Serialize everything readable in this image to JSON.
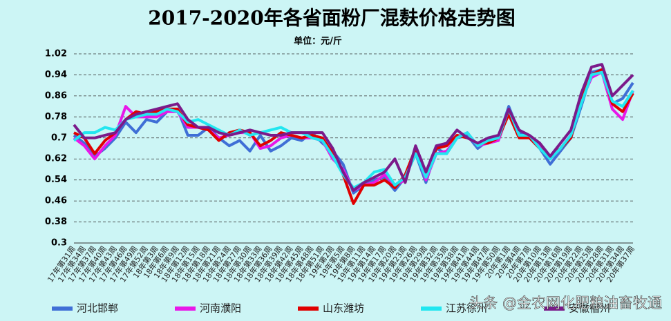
{
  "chart_data": {
    "type": "line",
    "title": "2017-2020年各省面粉厂混麸价格走势图",
    "subtitle": "单位：元/斤",
    "watermark": "头条 @金农网化肥粮油畜牧通",
    "categories": [
      "17年第31周",
      "17年第34周",
      "17年第37周",
      "17年第40周",
      "17年第43周",
      "17年第46周",
      "17年第49周",
      "17年第52周",
      "18年第3周",
      "18年第6周",
      "18年第9周",
      "18年第12周",
      "18年第15周",
      "18年第18周",
      "18年第21周",
      "18年第24周",
      "18年第27周",
      "18年第30周",
      "18年第33周",
      "18年第36周",
      "18年第39周",
      "18年第42周",
      "18年第45周",
      "18年第48周",
      "18年第51周",
      "19年第2周",
      "19年第5周",
      "19年第8周",
      "19年第11周",
      "19年第14周",
      "19年第17周",
      "19年第20周",
      "19年第23周",
      "19年第26周",
      "19年第29周",
      "19年第32周",
      "19年第35周",
      "19年第38周",
      "19年第41周",
      "19年第44周",
      "19年第47周",
      "19年第50周",
      "20年第1周",
      "20年第4周",
      "20年第7周",
      "20年第10周",
      "20年第13周",
      "20年第16周",
      "20年第19周",
      "20年第22周",
      "20年第25周",
      "20年第28周",
      "20年第31周",
      "20年第34周",
      "20年第37周"
    ],
    "series": [
      {
        "name": "河北邯郸",
        "color": "#3f6fd6",
        "values": [
          0.71,
          0.68,
          0.63,
          0.66,
          0.7,
          0.76,
          0.72,
          0.77,
          0.76,
          0.8,
          0.81,
          0.71,
          0.71,
          0.74,
          0.7,
          0.67,
          0.69,
          0.65,
          0.71,
          0.65,
          0.67,
          0.7,
          0.69,
          0.72,
          0.68,
          0.65,
          0.6,
          0.49,
          0.52,
          0.54,
          0.55,
          0.5,
          0.55,
          0.64,
          0.53,
          0.66,
          0.64,
          0.7,
          0.71,
          0.66,
          0.69,
          0.7,
          0.82,
          0.72,
          0.7,
          0.66,
          0.6,
          0.65,
          0.7,
          0.82,
          0.95,
          0.96,
          0.83,
          0.85,
          0.91
        ]
      },
      {
        "name": "河南濮阳",
        "color": "#e818e8",
        "values": [
          0.7,
          0.67,
          0.62,
          0.67,
          0.71,
          0.82,
          0.78,
          0.78,
          0.78,
          0.8,
          0.8,
          0.74,
          0.74,
          0.73,
          0.7,
          0.71,
          0.72,
          0.72,
          0.66,
          0.67,
          0.7,
          0.71,
          0.7,
          0.7,
          0.69,
          0.62,
          0.58,
          0.5,
          0.52,
          0.53,
          0.56,
          0.52,
          0.54,
          0.66,
          0.54,
          0.64,
          0.65,
          0.7,
          0.72,
          0.67,
          0.68,
          0.69,
          0.8,
          0.71,
          0.7,
          0.67,
          0.62,
          0.66,
          0.71,
          0.84,
          0.93,
          0.95,
          0.81,
          0.77,
          0.88
        ]
      },
      {
        "name": "山东潍坊",
        "color": "#e00000",
        "values": [
          0.72,
          0.7,
          0.64,
          0.69,
          0.72,
          0.77,
          0.8,
          0.79,
          0.8,
          0.81,
          0.81,
          0.75,
          0.74,
          0.73,
          0.69,
          0.72,
          0.73,
          0.72,
          0.67,
          0.69,
          0.72,
          0.71,
          0.7,
          0.71,
          0.7,
          0.64,
          0.56,
          0.45,
          0.52,
          0.52,
          0.54,
          0.51,
          0.56,
          0.66,
          0.56,
          0.66,
          0.67,
          0.71,
          0.7,
          0.68,
          0.68,
          0.7,
          0.79,
          0.7,
          0.7,
          0.66,
          0.63,
          0.66,
          0.7,
          0.85,
          0.94,
          0.96,
          0.83,
          0.8,
          0.87
        ]
      },
      {
        "name": "江苏徐州",
        "color": "#22e6f0",
        "values": [
          0.69,
          0.72,
          0.72,
          0.74,
          0.73,
          0.77,
          0.78,
          0.79,
          0.79,
          0.81,
          0.8,
          0.76,
          0.77,
          0.75,
          0.73,
          0.71,
          0.73,
          0.71,
          0.72,
          0.73,
          0.74,
          0.72,
          0.72,
          0.7,
          0.69,
          0.63,
          0.56,
          0.51,
          0.53,
          0.57,
          0.58,
          0.52,
          0.55,
          0.64,
          0.55,
          0.64,
          0.64,
          0.7,
          0.72,
          0.67,
          0.69,
          0.7,
          0.81,
          0.71,
          0.71,
          0.66,
          0.62,
          0.66,
          0.71,
          0.83,
          0.94,
          0.95,
          0.84,
          0.82,
          0.88
        ]
      },
      {
        "name": "安徽宿州",
        "color": "#7b1a8a",
        "values": [
          0.75,
          0.7,
          0.7,
          0.71,
          0.72,
          0.77,
          0.79,
          0.8,
          0.81,
          0.82,
          0.83,
          0.77,
          0.74,
          0.74,
          0.72,
          0.71,
          0.72,
          0.73,
          0.72,
          0.71,
          0.71,
          0.72,
          0.72,
          0.72,
          0.72,
          0.66,
          0.57,
          0.5,
          0.53,
          0.55,
          0.57,
          0.62,
          0.53,
          0.67,
          0.57,
          0.67,
          0.68,
          0.73,
          0.7,
          0.68,
          0.7,
          0.71,
          0.81,
          0.73,
          0.71,
          0.68,
          0.63,
          0.68,
          0.73,
          0.87,
          0.97,
          0.98,
          0.86,
          0.9,
          0.94
        ]
      }
    ],
    "ylim": [
      0.3,
      1.02
    ],
    "yticks": [
      0.3,
      0.38,
      0.46,
      0.54,
      0.62,
      0.7,
      0.78,
      0.86,
      0.94,
      1.02
    ],
    "grid": true
  }
}
